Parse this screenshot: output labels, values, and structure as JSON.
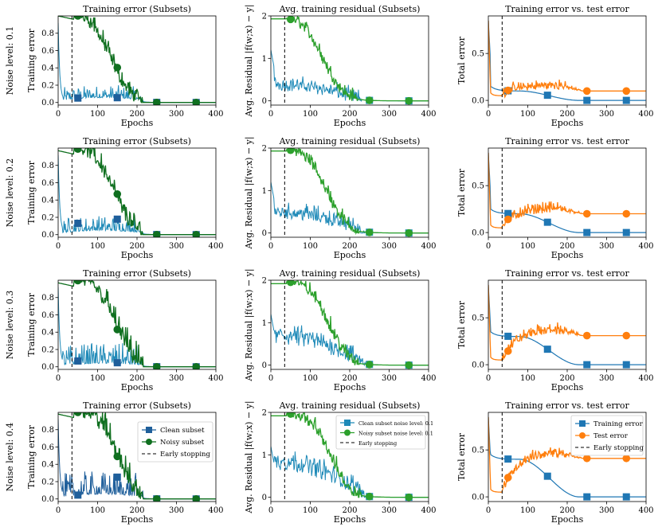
{
  "figure": {
    "row_labels": [
      "Noise level: 0.1",
      "Noise level: 0.2",
      "Noise level: 0.3",
      "Noise level: 0.4"
    ],
    "early_stopping_epoch": 35,
    "colors": {
      "clean": "#1f8ab8",
      "clean_dark": "#1f5f9b",
      "noisy": "#0f6f1f",
      "noisy_light": "#2ca02c",
      "train": "#1f77b4",
      "test": "#ff7f0e"
    },
    "axis_label_x": "Epochs"
  },
  "chart_data": [
    {
      "type": "line",
      "column": "train_subsets",
      "title": "Training error (Subsets)",
      "xlabel": "Epochs",
      "ylabel": "Training error",
      "xlim": [
        0,
        400
      ],
      "ylim": [
        -0.03,
        1.0
      ],
      "xticks": [
        "0",
        "100",
        "200",
        "300",
        "400"
      ],
      "yticks": [
        "0.0",
        "0.2",
        "0.4",
        "0.6",
        "0.8"
      ],
      "ytick_values": [
        0,
        0.2,
        0.4,
        0.6,
        0.8
      ],
      "legend": {
        "row": 3,
        "position": "right",
        "entries": [
          "Clean subset",
          "Noisy subset",
          "Early stopping"
        ]
      },
      "series": [
        {
          "name": "Clean subset",
          "marker": "square",
          "marker_x": [
            50,
            150,
            250,
            350
          ],
          "levels": [
            {
              "start": 0.9,
              "plateau": 0.07,
              "peak": 0.1,
              "noise": 0.05
            },
            {
              "start": 0.9,
              "plateau": 0.06,
              "peak": 0.11,
              "noise": 0.06
            },
            {
              "start": 0.9,
              "plateau": 0.05,
              "peak": 0.16,
              "noise": 0.08
            },
            {
              "start": 0.9,
              "plateau": 0.07,
              "peak": 0.14,
              "noise": 0.09
            }
          ]
        },
        {
          "name": "Noisy subset",
          "marker": "circle",
          "marker_x": [
            50,
            150,
            250,
            350
          ],
          "levels": [
            {
              "start": 1.0,
              "mid_x": 130,
              "end_x": 215,
              "noise": 0.05
            },
            {
              "start": 0.97,
              "mid_x": 140,
              "end_x": 215,
              "noise": 0.06
            },
            {
              "start": 0.97,
              "mid_x": 145,
              "end_x": 215,
              "noise": 0.07
            },
            {
              "start": 0.98,
              "mid_x": 150,
              "end_x": 215,
              "noise": 0.07
            }
          ]
        }
      ]
    },
    {
      "type": "line",
      "column": "residual_subsets",
      "title": "Avg. training residual (Subsets)",
      "xlabel": "Epochs",
      "ylabel": "Avg. Residual |f(w;x) − y|",
      "xlim": [
        0,
        400
      ],
      "ylim": [
        -0.1,
        2.0
      ],
      "xticks": [
        "0",
        "100",
        "200",
        "300",
        "400"
      ],
      "yticks": [
        "0",
        "1",
        "2"
      ],
      "ytick_values": [
        0,
        1,
        2
      ],
      "legend": {
        "row": 3,
        "position": "top-right",
        "entries": [
          "Clean subset noise level: 0.1",
          "Noisy subset noise level: 0.1",
          "Early stopping"
        ]
      },
      "series": [
        {
          "name": "Clean subset",
          "marker": "square",
          "marker_x": [
            250,
            350
          ],
          "levels": [
            {
              "plateau": 0.35,
              "decay_end": 230,
              "noise": 0.12
            },
            {
              "plateau": 0.45,
              "decay_end": 240,
              "noise": 0.14
            },
            {
              "plateau": 0.65,
              "decay_end": 240,
              "noise": 0.16
            },
            {
              "plateau": 0.8,
              "decay_end": 240,
              "noise": 0.17
            }
          ]
        },
        {
          "name": "Noisy subset",
          "marker": "circle",
          "marker_x": [
            50,
            250,
            350
          ],
          "levels": [
            {
              "start": 1.93,
              "mid_x": 130,
              "end_x": 220
            },
            {
              "start": 1.93,
              "mid_x": 140,
              "end_x": 225
            },
            {
              "start": 1.92,
              "mid_x": 145,
              "end_x": 225
            },
            {
              "start": 1.92,
              "mid_x": 150,
              "end_x": 230
            }
          ]
        }
      ]
    },
    {
      "type": "line",
      "column": "train_vs_test",
      "title": "Training error vs. test error",
      "xlabel": "Epochs",
      "ylabel": "Total error",
      "xlim": [
        0,
        400
      ],
      "ylim": [
        -0.05,
        0.9
      ],
      "xticks": [
        "0",
        "100",
        "200",
        "300",
        "400"
      ],
      "yticks": [
        "0.0",
        "0.5"
      ],
      "ytick_values": [
        0,
        0.5
      ],
      "legend": {
        "row": 3,
        "position": "top-right",
        "entries": [
          "Training error",
          "Test error",
          "Early stopping"
        ]
      },
      "series": [
        {
          "name": "Training error",
          "marker": "square",
          "marker_x": [
            50,
            150,
            250,
            350
          ],
          "levels": [
            {
              "plateau": 0.1,
              "final": 0.0
            },
            {
              "plateau": 0.2,
              "final": 0.0
            },
            {
              "plateau": 0.3,
              "final": 0.0
            },
            {
              "plateau": 0.4,
              "final": 0.0
            }
          ]
        },
        {
          "name": "Test error",
          "marker": "circle",
          "marker_x": [
            50,
            250,
            350
          ],
          "levels": [
            {
              "min": 0.05,
              "final": 0.1,
              "bump": 0.05
            },
            {
              "min": 0.05,
              "final": 0.2,
              "bump": 0.05
            },
            {
              "min": 0.05,
              "final": 0.31,
              "bump": 0.06
            },
            {
              "min": 0.05,
              "final": 0.41,
              "bump": 0.06
            }
          ]
        }
      ]
    }
  ]
}
